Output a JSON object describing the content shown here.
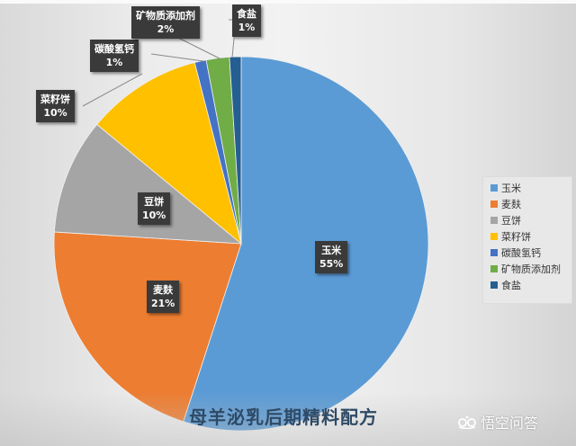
{
  "chart_data": {
    "type": "pie",
    "title": "母羊泌乳后期精料配方",
    "categories": [
      "玉米",
      "麦麸",
      "豆饼",
      "菜籽饼",
      "碳酸氢钙",
      "矿物质添加剂",
      "食盐"
    ],
    "values": [
      55,
      21,
      10,
      10,
      1,
      2,
      1
    ],
    "unit": "%",
    "colors": [
      "#5b9bd5",
      "#ed7d31",
      "#a5a5a5",
      "#ffc000",
      "#4472c4",
      "#70ad47",
      "#255e91"
    ],
    "data_labels": [
      {
        "name": "玉米",
        "pct": "55%"
      },
      {
        "name": "麦麸",
        "pct": "21%"
      },
      {
        "name": "豆饼",
        "pct": "10%"
      },
      {
        "name": "菜籽饼",
        "pct": "10%"
      },
      {
        "name": "碳酸氢钙",
        "pct": "1%"
      },
      {
        "name": "矿物质添加剂",
        "pct": "2%"
      },
      {
        "name": "食盐",
        "pct": "1%"
      }
    ],
    "legend_position": "right",
    "start_angle": 0,
    "direction": "clockwise"
  },
  "legend": {
    "items": [
      {
        "label": "玉米",
        "color": "#5b9bd5"
      },
      {
        "label": "麦麸",
        "color": "#ed7d31"
      },
      {
        "label": "豆饼",
        "color": "#a5a5a5"
      },
      {
        "label": "菜籽饼",
        "color": "#ffc000"
      },
      {
        "label": "碳酸氢钙",
        "color": "#4472c4"
      },
      {
        "label": "矿物质添加剂",
        "color": "#70ad47"
      },
      {
        "label": "食盐",
        "color": "#255e91"
      }
    ]
  },
  "caption": "母羊泌乳后期精料配方",
  "watermark": "悟空问答"
}
